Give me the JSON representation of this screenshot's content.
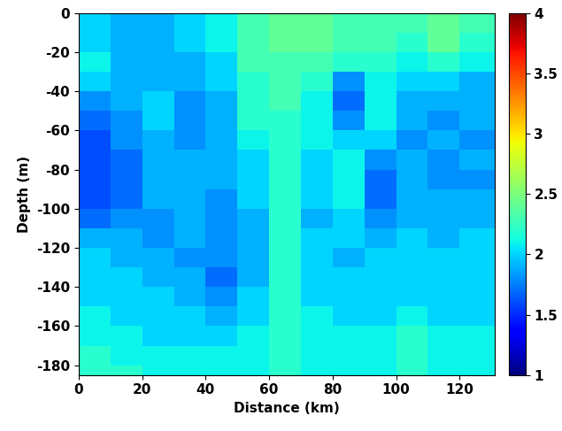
{
  "chart_data": {
    "type": "heatmap",
    "xlabel": "Distance (km)",
    "ylabel": "Depth (m)",
    "xlim": [
      0,
      131
    ],
    "ylim": [
      -185,
      0
    ],
    "xticks": [
      0,
      20,
      40,
      60,
      80,
      100,
      120
    ],
    "yticks": [
      -180,
      -160,
      -140,
      -120,
      -100,
      -80,
      -60,
      -40,
      -20,
      0
    ],
    "x_edges": [
      0,
      10,
      20,
      30,
      40,
      50,
      60,
      70,
      80,
      90,
      100,
      110,
      120,
      131
    ],
    "y_edges": [
      0,
      -10,
      -20,
      -30,
      -40,
      -50,
      -60,
      -70,
      -80,
      -90,
      -100,
      -110,
      -120,
      -130,
      -140,
      -150,
      -160,
      -170,
      -180,
      -185
    ],
    "cells": [
      [
        2.0,
        1.9,
        1.9,
        2.0,
        2.1,
        2.3,
        2.4,
        2.4,
        2.3,
        2.3,
        2.3,
        2.4,
        2.3
      ],
      [
        2.0,
        1.9,
        1.9,
        2.0,
        2.1,
        2.3,
        2.4,
        2.4,
        2.3,
        2.3,
        2.2,
        2.4,
        2.2
      ],
      [
        2.1,
        1.9,
        1.9,
        1.9,
        2.0,
        2.3,
        2.3,
        2.3,
        2.2,
        2.2,
        2.1,
        2.2,
        2.1
      ],
      [
        2.0,
        1.9,
        1.9,
        1.9,
        2.0,
        2.2,
        2.3,
        2.2,
        1.8,
        2.1,
        2.0,
        2.0,
        1.9
      ],
      [
        1.8,
        1.9,
        2.0,
        1.8,
        1.9,
        2.2,
        2.3,
        2.1,
        1.7,
        2.1,
        1.9,
        1.9,
        1.9
      ],
      [
        1.7,
        1.8,
        2.0,
        1.8,
        1.9,
        2.2,
        2.2,
        2.1,
        1.8,
        2.1,
        1.9,
        1.8,
        1.9
      ],
      [
        1.6,
        1.8,
        1.9,
        1.8,
        1.9,
        2.1,
        2.2,
        2.1,
        2.0,
        2.0,
        1.8,
        1.9,
        1.8
      ],
      [
        1.6,
        1.7,
        1.9,
        1.9,
        1.9,
        2.0,
        2.2,
        2.0,
        2.1,
        1.8,
        1.9,
        1.8,
        1.9
      ],
      [
        1.6,
        1.7,
        1.9,
        1.9,
        1.9,
        2.0,
        2.2,
        2.0,
        2.1,
        1.7,
        1.9,
        1.8,
        1.8
      ],
      [
        1.6,
        1.7,
        1.9,
        1.9,
        1.8,
        2.0,
        2.2,
        2.0,
        2.1,
        1.7,
        1.9,
        1.9,
        1.9
      ],
      [
        1.7,
        1.8,
        1.8,
        1.9,
        1.8,
        1.9,
        2.2,
        1.9,
        2.0,
        1.8,
        1.9,
        1.9,
        1.9
      ],
      [
        1.9,
        1.9,
        1.8,
        1.9,
        1.8,
        1.9,
        2.2,
        2.0,
        2.0,
        1.9,
        2.0,
        1.9,
        2.0
      ],
      [
        2.0,
        1.9,
        1.9,
        1.8,
        1.8,
        1.9,
        2.2,
        2.0,
        1.9,
        2.0,
        2.0,
        2.0,
        2.0
      ],
      [
        2.0,
        2.0,
        1.9,
        1.9,
        1.7,
        1.9,
        2.2,
        2.0,
        2.0,
        2.0,
        2.0,
        2.0,
        2.0
      ],
      [
        2.0,
        2.0,
        2.0,
        1.9,
        1.8,
        2.0,
        2.2,
        2.0,
        2.0,
        2.0,
        2.0,
        2.0,
        2.0
      ],
      [
        2.1,
        2.0,
        2.0,
        2.0,
        1.9,
        2.0,
        2.2,
        2.1,
        2.0,
        2.0,
        2.1,
        2.0,
        2.0
      ],
      [
        2.1,
        2.1,
        2.0,
        2.0,
        2.0,
        2.1,
        2.2,
        2.1,
        2.1,
        2.1,
        2.2,
        2.1,
        2.1
      ],
      [
        2.2,
        2.1,
        2.1,
        2.1,
        2.1,
        2.1,
        2.2,
        2.1,
        2.1,
        2.1,
        2.2,
        2.1,
        2.1
      ],
      [
        2.2,
        2.2,
        2.1,
        2.1,
        2.1,
        2.1,
        2.2,
        2.1,
        2.1,
        2.1,
        2.2,
        2.1,
        2.1
      ]
    ],
    "colorbar_range": [
      1,
      4
    ],
    "colorbar_ticks": [
      1,
      1.5,
      2,
      2.5,
      3,
      3.5,
      4
    ]
  }
}
